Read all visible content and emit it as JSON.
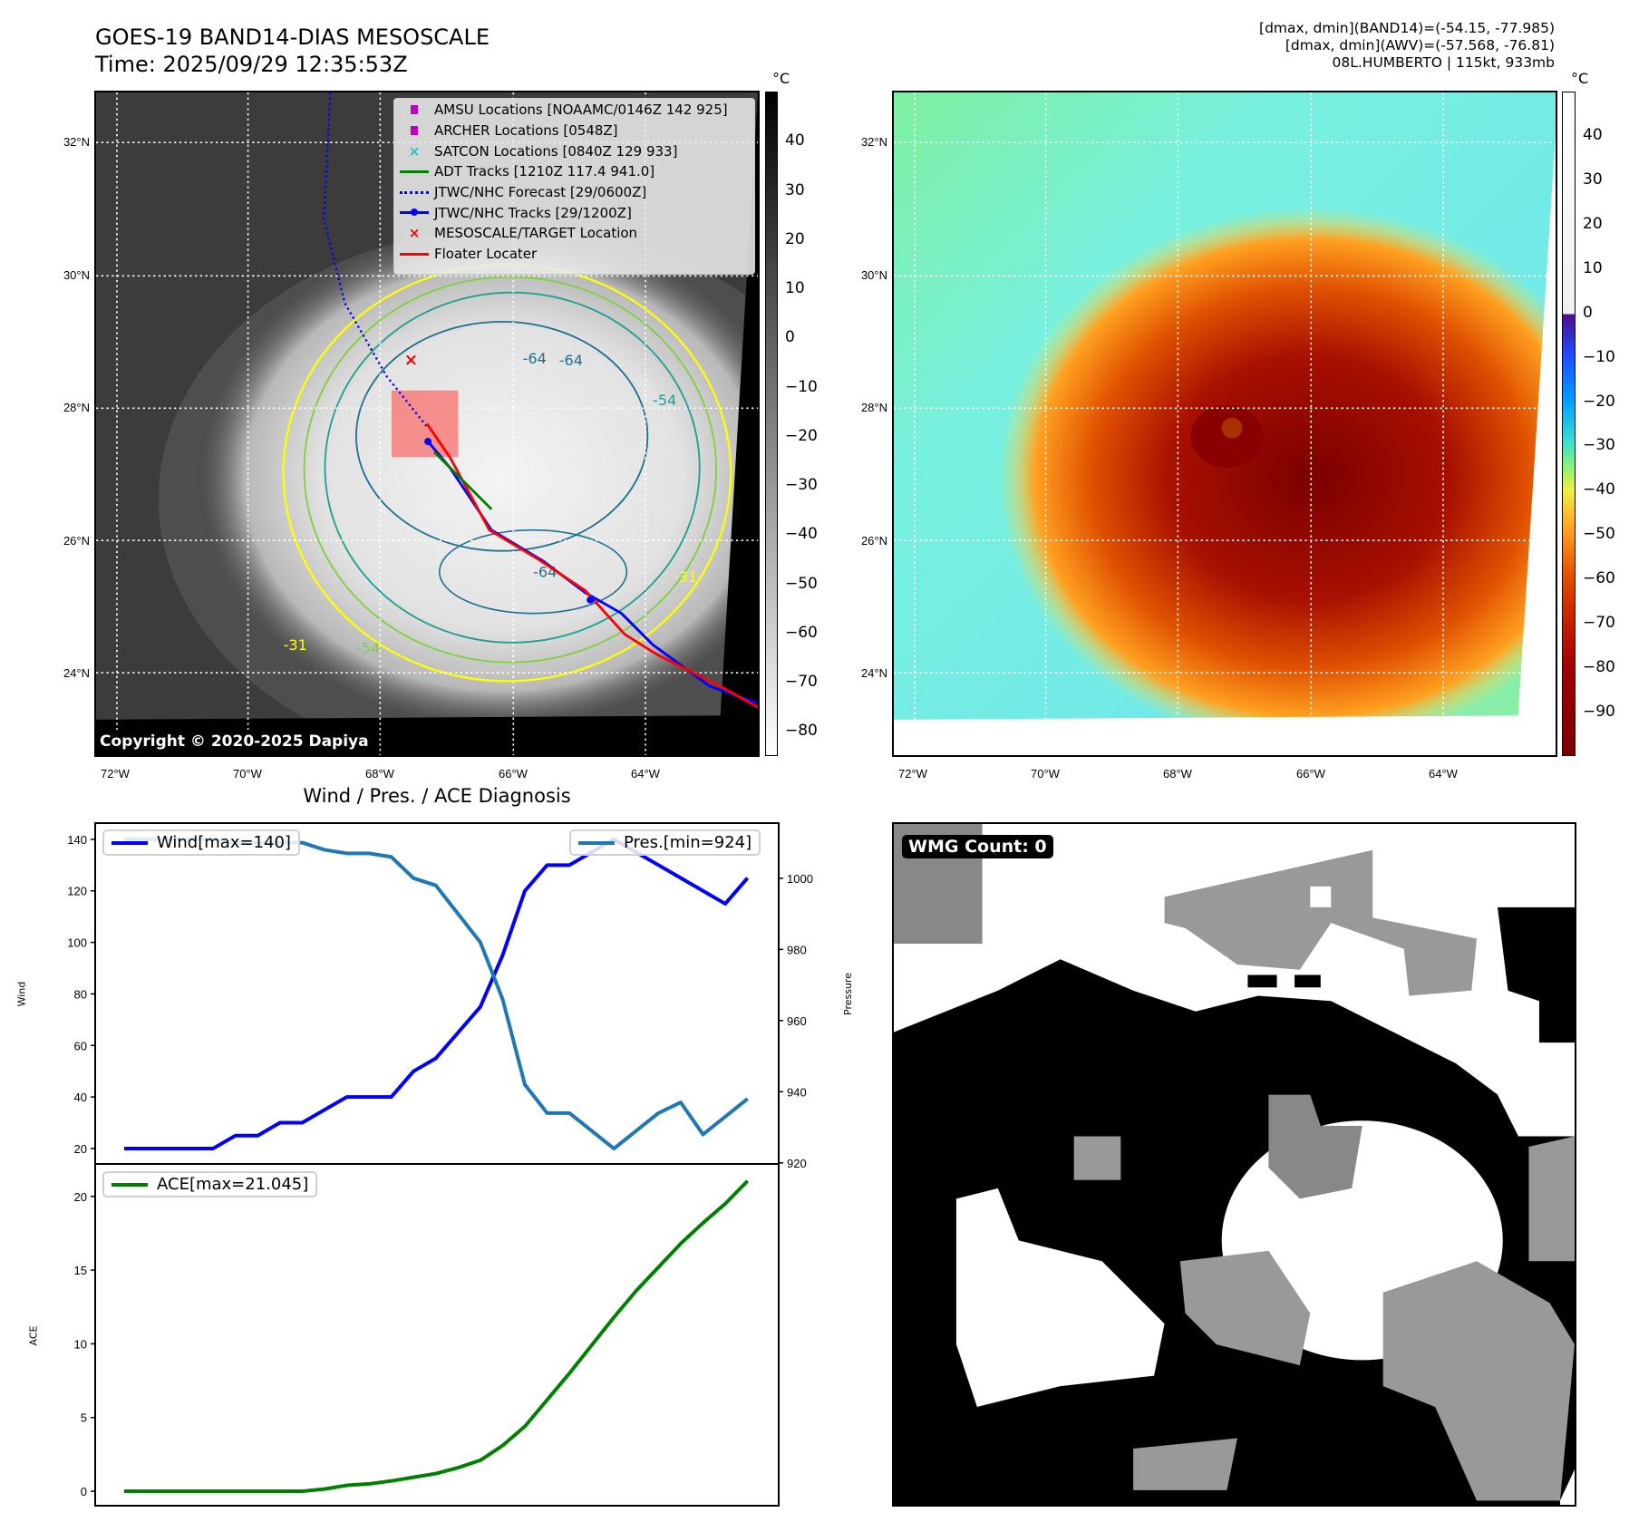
{
  "header": {
    "title_line1": "GOES-19 BAND14-DIAS MESOSCALE",
    "title_line2": "Time: 2025/09/29 12:35:53Z",
    "info_line1": "[dmax, dmin](BAND14)=(-54.15, -77.985)",
    "info_line2": "[dmax, dmin](AWV)=(-57.568, -76.81)",
    "info_line3": "08L.HUMBERTO | 115kt, 933mb"
  },
  "map": {
    "lat_labels": [
      "32°N",
      "30°N",
      "28°N",
      "26°N",
      "24°N"
    ],
    "lon_labels": [
      "72°W",
      "70°W",
      "68°W",
      "66°W",
      "64°W"
    ],
    "copyright": "Copyright © 2020-2025 Dapiya",
    "contour_labels": [
      "-64",
      "-64",
      "-54",
      "-64",
      "-31",
      "-54",
      "-31"
    ],
    "legend": [
      {
        "label": "AMSU Locations [NOAAMC/0146Z 142 925]",
        "symbol": "square",
        "color": "#c000c0"
      },
      {
        "label": "ARCHER Locations [0548Z]",
        "symbol": "square",
        "color": "#c000c0"
      },
      {
        "label": "SATCON Locations [0840Z 129 933]",
        "symbol": "x",
        "color": "#20c0c0"
      },
      {
        "label": "ADT Tracks [1210Z 117.4 941.0]",
        "symbol": "line",
        "color": "#008000"
      },
      {
        "label": "JTWC/NHC Forecast [29/0600Z]",
        "symbol": "dotted",
        "color": "#0000ff"
      },
      {
        "label": "JTWC/NHC Tracks [29/1200Z]",
        "symbol": "line-dot",
        "color": "#0000ff"
      },
      {
        "label": "MESOSCALE/TARGET Location",
        "symbol": "x",
        "color": "#ff0000"
      },
      {
        "label": "Floater Locater",
        "symbol": "line",
        "color": "#ff0000"
      }
    ]
  },
  "colorbar_left": {
    "unit": "°C",
    "ticks": [
      40,
      30,
      20,
      10,
      0,
      -10,
      -20,
      -30,
      -40,
      -50,
      -60,
      -70,
      -80
    ],
    "range": [
      50.2,
      -84.9
    ]
  },
  "colorbar_right": {
    "unit": "°C",
    "ticks": [
      40,
      30,
      20,
      10,
      0,
      -10,
      -20,
      -30,
      -40,
      -50,
      -60,
      -70,
      -80,
      -90
    ],
    "range": [
      50.1,
      -99.9
    ]
  },
  "wmg": {
    "label": "WMG Count: 0"
  },
  "chart_data": [
    {
      "type": "line",
      "title": "Wind / Pres. / ACE Diagnosis",
      "x": [
        0,
        1,
        2,
        3,
        4,
        5,
        6,
        7,
        8,
        9,
        10,
        11,
        12,
        13,
        14,
        15,
        16,
        17,
        18,
        19,
        20,
        21,
        22,
        23,
        24,
        25,
        26,
        27,
        28
      ],
      "xlim": [
        -1.3,
        29.4
      ],
      "ylabel": "Wind",
      "y2label": "Pressure",
      "ylim": [
        14,
        146.3
      ],
      "y2lim": [
        919.7,
        1015.5
      ],
      "yticks": [
        20,
        40,
        60,
        80,
        100,
        120,
        140
      ],
      "y2ticks": [
        920,
        940,
        960,
        980,
        1000
      ],
      "series": [
        {
          "name": "Wind[max=140]",
          "axis": "left",
          "color": "#0000ff",
          "values": [
            20,
            20,
            20,
            20,
            20,
            25,
            25,
            30,
            30,
            35,
            40,
            40,
            40,
            50,
            55,
            65,
            75,
            95,
            120,
            130,
            130,
            135,
            140,
            135,
            130,
            125,
            120,
            115,
            125
          ]
        },
        {
          "name": "Pres.[min=924]",
          "axis": "right",
          "color": "#1f77b4",
          "values": [
            1011,
            1011,
            1011,
            1011,
            1011,
            1010,
            1010,
            1010,
            1010,
            1008,
            1007,
            1007,
            1006,
            1000,
            998,
            990,
            982,
            966,
            942,
            934,
            934,
            929,
            924,
            929,
            934,
            937,
            928,
            933,
            938
          ]
        }
      ],
      "legend": [
        "top-left",
        "top-right"
      ]
    },
    {
      "type": "line",
      "ylabel": "ACE",
      "ylim": [
        -0.98,
        22.2
      ],
      "yticks": [
        0,
        5,
        10,
        15,
        20
      ],
      "series": [
        {
          "name": "ACE[max=21.045]",
          "color": "#008000",
          "values": [
            0,
            0,
            0,
            0,
            0,
            0,
            0,
            0,
            0,
            0.15,
            0.4,
            0.5,
            0.7,
            0.95,
            1.2,
            1.6,
            2.1,
            3.1,
            4.4,
            6.2,
            8.0,
            9.9,
            11.8,
            13.6,
            15.2,
            16.8,
            18.2,
            19.5,
            21.045
          ]
        }
      ],
      "legend": "top-left"
    }
  ]
}
